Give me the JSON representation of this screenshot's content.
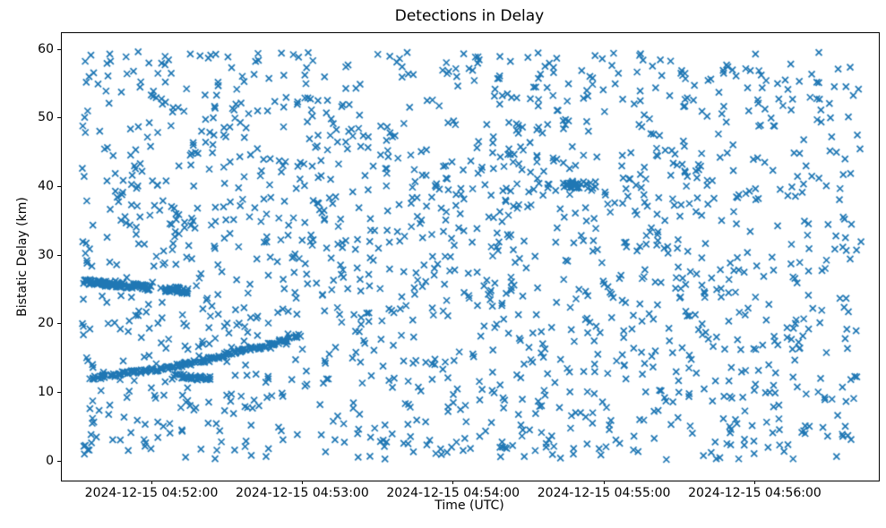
{
  "chart_data": {
    "type": "scatter",
    "title": "Detections in Delay",
    "xlabel": "Time (UTC)",
    "ylabel": "Bistatic Delay (km)",
    "grid": false,
    "legend": false,
    "marker": "x",
    "marker_color": "#1f77b4",
    "marker_size_px": 7,
    "spine_color": "#000000",
    "background_color": "#ffffff",
    "x_axis": {
      "base_date": "2024-12-15",
      "origin_time": "04:51:00",
      "xlim_seconds_after_origin": [
        24,
        349
      ],
      "ticks": [
        {
          "seconds": 60,
          "label": "2024-12-15 04:52:00"
        },
        {
          "seconds": 120,
          "label": "2024-12-15 04:53:00"
        },
        {
          "seconds": 180,
          "label": "2024-12-15 04:54:00"
        },
        {
          "seconds": 240,
          "label": "2024-12-15 04:55:00"
        },
        {
          "seconds": 300,
          "label": "2024-12-15 04:56:00"
        }
      ]
    },
    "y_axis": {
      "ylim": [
        -2.7,
        62.5
      ],
      "ticks": [
        0,
        10,
        20,
        30,
        40,
        50,
        60
      ]
    },
    "noise": {
      "description": "uniform random clutter detections filling the plot",
      "count": 1600,
      "t_range_seconds": [
        32,
        342
      ],
      "delay_range_km": [
        0.3,
        59.8
      ],
      "seed": 7
    },
    "tracks": [
      {
        "name": "dense-track-upper-left",
        "points_count": 95,
        "jitter_t_s": 1.2,
        "jitter_delay_km": 0.4,
        "waypoints_t_delay": [
          [
            33,
            26.3
          ],
          [
            59,
            25.4
          ]
        ]
      },
      {
        "name": "dense-blob-upper-left",
        "points_count": 35,
        "jitter_t_s": 1.6,
        "jitter_delay_km": 0.5,
        "waypoints_t_delay": [
          [
            64,
            25.3
          ],
          [
            74,
            24.9
          ]
        ]
      },
      {
        "name": "rising-track-lower-left",
        "points_count": 175,
        "jitter_t_s": 1.1,
        "jitter_delay_km": 0.32,
        "waypoints_t_delay": [
          [
            35,
            12.2
          ],
          [
            48,
            12.9
          ],
          [
            61,
            13.5
          ],
          [
            72,
            14.2
          ],
          [
            83,
            15.0
          ],
          [
            93,
            16.1
          ],
          [
            104,
            16.9
          ],
          [
            119,
            18.4
          ]
        ]
      },
      {
        "name": "flat-segment-lower-left",
        "points_count": 42,
        "jitter_t_s": 1.6,
        "jitter_delay_km": 0.35,
        "waypoints_t_delay": [
          [
            70,
            12.5
          ],
          [
            82,
            12.2
          ]
        ]
      },
      {
        "name": "small-cluster-mid-right",
        "points_count": 26,
        "jitter_t_s": 2.2,
        "jitter_delay_km": 0.6,
        "waypoints_t_delay": [
          [
            223,
            40.6
          ],
          [
            233,
            40.2
          ]
        ]
      }
    ]
  }
}
